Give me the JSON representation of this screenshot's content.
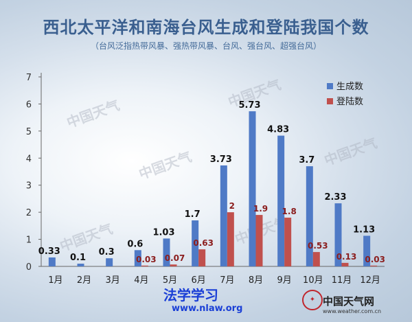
{
  "header": {
    "title": "西北太平洋和南海台风生成和登陆我国个数",
    "subtitle": "（台风泛指热带风暴、强热带风暴、台风、强台风、超强台风）"
  },
  "watermarks": [
    "中国天气",
    "中国天气",
    "中国天气",
    "中国天气",
    "中国天气",
    "中国天气"
  ],
  "footer": {
    "brand_text": "法学学习",
    "brand_url": "www.nlaw.org",
    "logo_name": "中国天气网",
    "logo_url": "www.weather.com.cn"
  },
  "colors": {
    "formed": "#4f7ac6",
    "landed": "#c0504d",
    "title": "#3a5f8f"
  },
  "chart_data": {
    "type": "bar",
    "categories": [
      "1月",
      "2月",
      "3月",
      "4月",
      "5月",
      "6月",
      "7月",
      "8月",
      "9月",
      "10月",
      "11月",
      "12月"
    ],
    "series": [
      {
        "name": "生成数",
        "values": [
          0.33,
          0.1,
          0.3,
          0.6,
          1.03,
          1.7,
          3.73,
          5.73,
          4.83,
          3.7,
          2.33,
          1.13
        ],
        "labels": [
          "0.33",
          "0.1",
          "0.3",
          "0.6",
          "1.03",
          "1.7",
          "3.73",
          "5.73",
          "4.83",
          "3.7",
          "2.33",
          "1.13"
        ]
      },
      {
        "name": "登陆数",
        "values": [
          0,
          0,
          0,
          0.03,
          0.07,
          0.63,
          2,
          1.9,
          1.8,
          0.53,
          0.13,
          0.03
        ],
        "labels": [
          "",
          "",
          "",
          "0.03",
          "0.07",
          "0.63",
          "2",
          "1.9",
          "1.8",
          "0.53",
          "0.13",
          "0.03"
        ]
      }
    ],
    "ylim": [
      0,
      7
    ],
    "yticks": [
      "0",
      "1",
      "2",
      "3",
      "4",
      "5",
      "6",
      "7"
    ],
    "legend": "top-right",
    "grid": false
  }
}
